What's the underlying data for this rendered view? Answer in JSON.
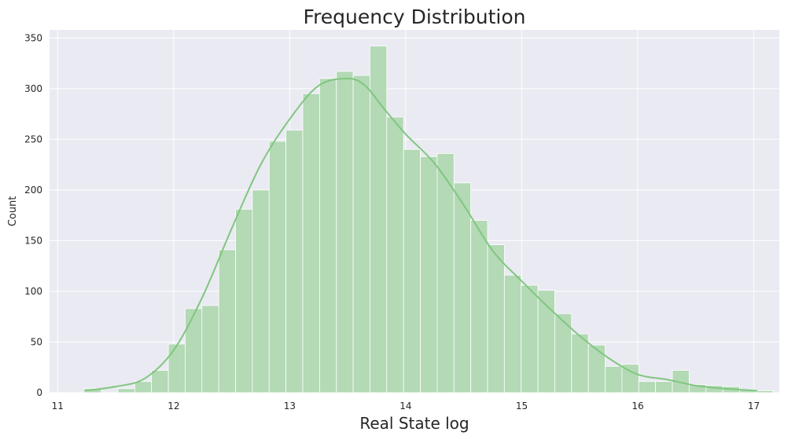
{
  "chart_data": {
    "type": "bar",
    "title": "Frequency Distribution",
    "xlabel": "Real State log",
    "ylabel": "Count",
    "xlim": [
      10.93,
      17.22
    ],
    "ylim": [
      0,
      358
    ],
    "xticks": [
      11,
      12,
      13,
      14,
      15,
      16,
      17
    ],
    "yticks": [
      0,
      50,
      100,
      150,
      200,
      250,
      300,
      350
    ],
    "grid": true,
    "colors": {
      "bar": "#b3d9b5",
      "bar_edge": "#ffffff",
      "kde": "#80c680",
      "background": "#eaeaf2",
      "grid": "#ffffff"
    },
    "bins": {
      "start": 11.23,
      "width": 0.1448,
      "counts": [
        4,
        0,
        4,
        11,
        22,
        48,
        83,
        86,
        141,
        181,
        200,
        248,
        259,
        295,
        310,
        317,
        313,
        342,
        272,
        240,
        233,
        236,
        207,
        170,
        146,
        116,
        106,
        101,
        78,
        58,
        47,
        26,
        28,
        11,
        11,
        22,
        8,
        7,
        6,
        3,
        2
      ]
    },
    "kde": {
      "x": [
        11.23,
        11.5,
        11.75,
        12.0,
        12.25,
        12.5,
        12.75,
        13.0,
        13.25,
        13.5,
        13.65,
        13.8,
        14.0,
        14.25,
        14.5,
        14.75,
        15.0,
        15.25,
        15.5,
        15.75,
        16.0,
        16.25,
        16.5,
        16.75,
        17.03
      ],
      "y": [
        2,
        6,
        14,
        42,
        95,
        162,
        225,
        270,
        303,
        310,
        303,
        282,
        255,
        226,
        185,
        140,
        110,
        82,
        56,
        34,
        18,
        13,
        7,
        4,
        2
      ]
    }
  }
}
